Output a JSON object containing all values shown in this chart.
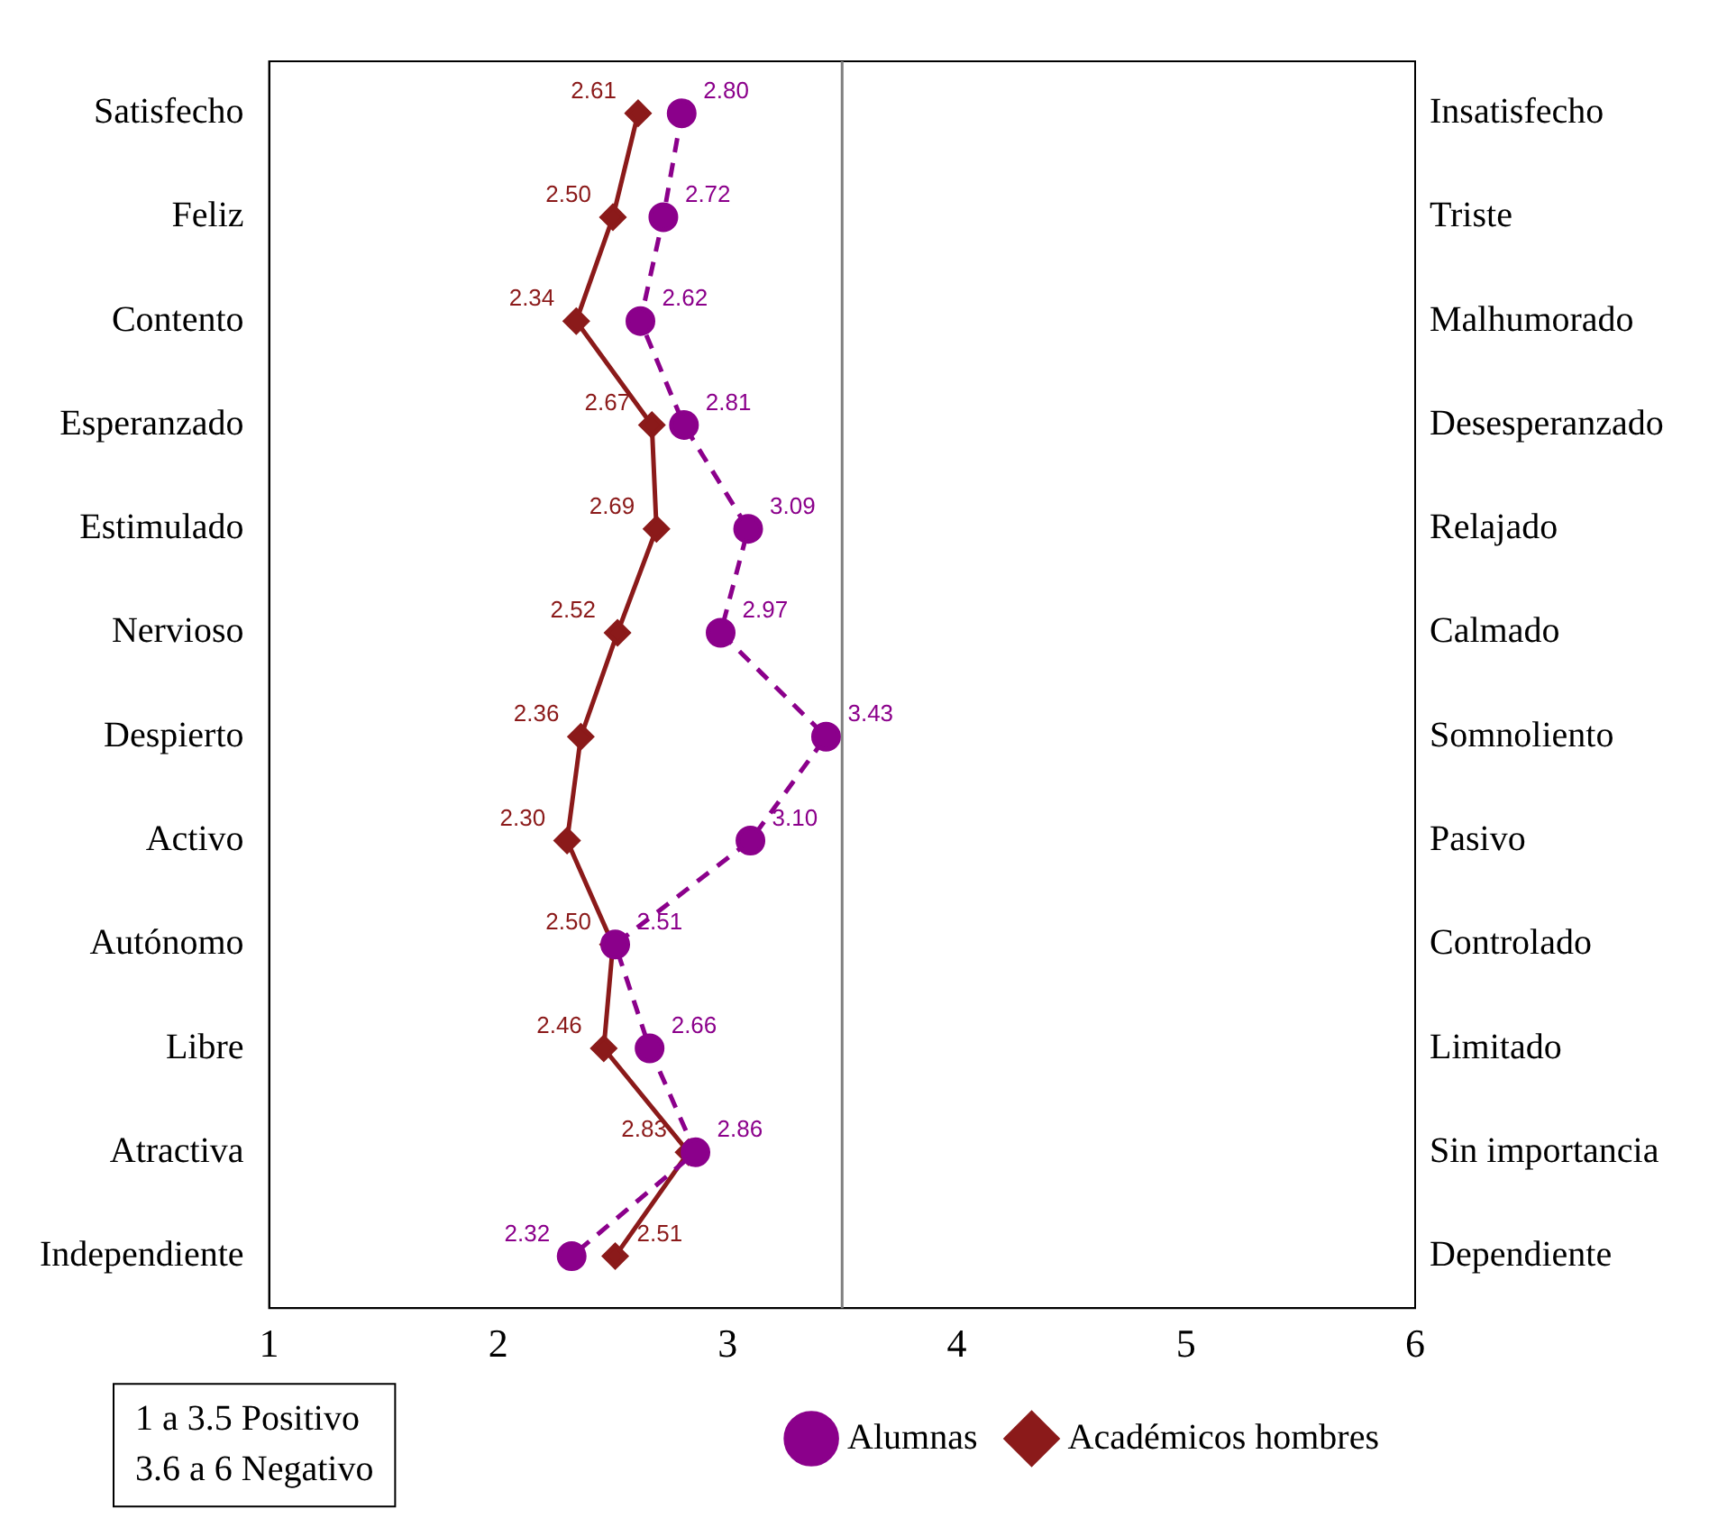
{
  "chart_data": {
    "type": "line",
    "orientation": "horizontal",
    "categories": [
      "Satisfecho",
      "Feliz",
      "Contento",
      "Esperanzado",
      "Estimulado",
      "Nervioso",
      "Despierto",
      "Activo",
      "Autónomo",
      "Libre",
      "Atractiva",
      "Independiente"
    ],
    "y2_categories": [
      "Insatisfecho",
      "Triste",
      "Malhumorado",
      "Desesperanzado",
      "Relajado",
      "Calmado",
      "Somnoliento",
      "Pasivo",
      "Controlado",
      "Limitado",
      "Sin importancia",
      "Dependiente"
    ],
    "series": [
      {
        "name": "Alumnas",
        "color": "#8b008b",
        "line_style": "dashed",
        "marker": "circle",
        "values": [
          2.8,
          2.72,
          2.62,
          2.81,
          3.09,
          2.97,
          3.43,
          3.1,
          2.51,
          2.66,
          2.86,
          2.32
        ],
        "value_labels": [
          "2.80",
          "2.72",
          "2.62",
          "2.81",
          "3.09",
          "2.97",
          "3.43",
          "3.10",
          "2.51",
          "2.66",
          "2.86",
          "2.32"
        ]
      },
      {
        "name": "Académicos hombres",
        "color": "#8b1a1a",
        "line_style": "solid",
        "marker": "diamond",
        "values": [
          2.61,
          2.5,
          2.34,
          2.67,
          2.69,
          2.52,
          2.36,
          2.3,
          2.5,
          2.46,
          2.83,
          2.51
        ],
        "value_labels": [
          "2.61",
          "2.50",
          "2.34",
          "2.67",
          "2.69",
          "2.52",
          "2.36",
          "2.30",
          "2.50",
          "2.46",
          "2.83",
          "2.51"
        ]
      }
    ],
    "xlim": [
      1,
      6
    ],
    "xticks": [
      1,
      2,
      3,
      4,
      5,
      6
    ],
    "ref_lines": [
      {
        "axis": "x",
        "value": 3.5,
        "color": "#808080"
      }
    ],
    "annotations": [
      "1 a 3.5 Positivo",
      "3.6 a 6 Negativo"
    ],
    "grid": false,
    "legend": "bottom right"
  }
}
